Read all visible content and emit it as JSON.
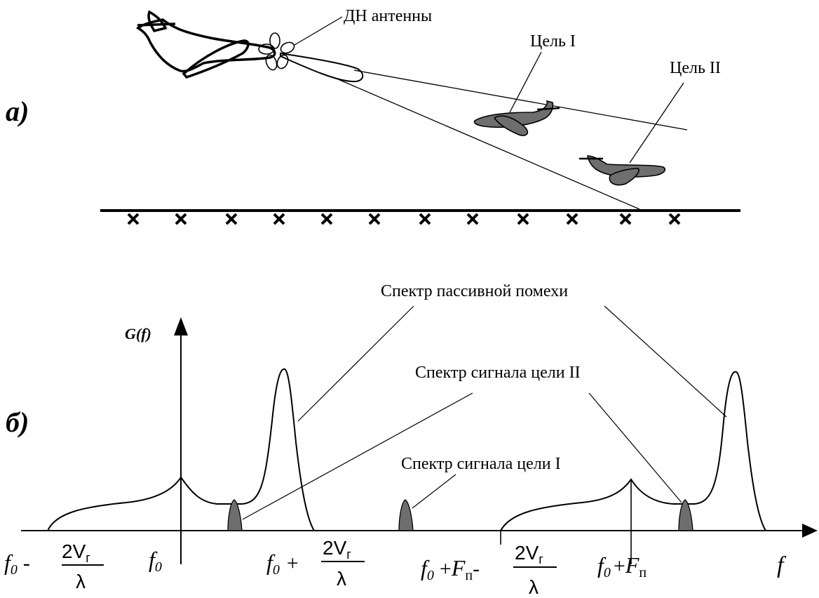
{
  "part_a": {
    "panel_label": "а)",
    "antenna_pattern_label": "ДН антенны",
    "target1_label": "Цель I",
    "target2_label": "Цель II"
  },
  "part_b": {
    "panel_label": "б)",
    "y_axis_label": "G(f)",
    "x_axis_label": "f",
    "clutter_label": "Спектр пассивной помехи",
    "target2_spectrum_label": "Спектр сигнала цели II",
    "target1_spectrum_label": "Спектр сигнала цели I",
    "ticks": {
      "t1_base": "f",
      "t1_sub": "0",
      "t1_op": "-",
      "t2_base": "f",
      "t2_sub": "0",
      "t3_base": "f",
      "t3_sub": "0",
      "t3_op": "+",
      "t4_base": "f",
      "t4_sub": "0",
      "t4_op1": "+",
      "t4_F": "F",
      "t4_Fsub": "п",
      "t4_op2": "-",
      "t5_base": "f",
      "t5_sub": "0",
      "t5_op": "+",
      "t5_F": "F",
      "t5_Fsub": "п",
      "frac_num": "2V",
      "frac_num_sub": "г",
      "frac_den": "λ"
    }
  },
  "colors": {
    "target_fill": "#6e6e6e",
    "line": "#000000"
  }
}
